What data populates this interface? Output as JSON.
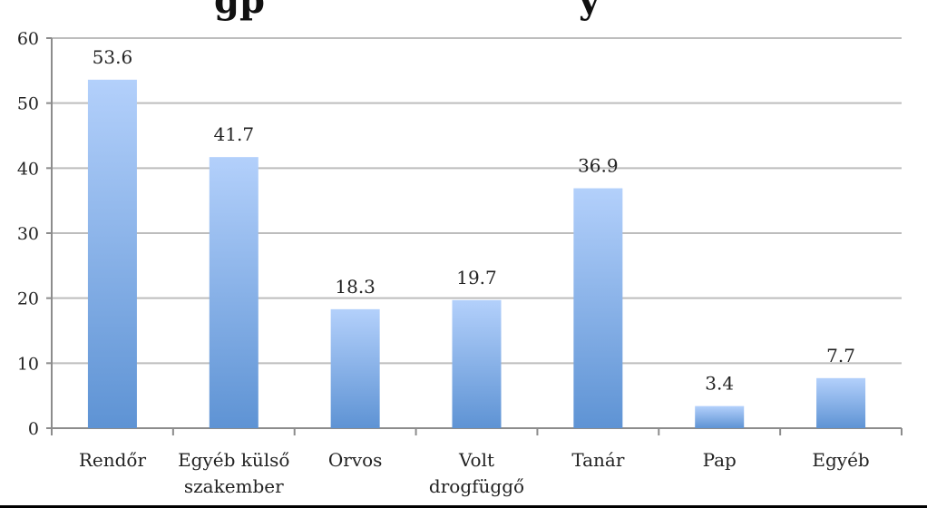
{
  "chart_data": {
    "type": "bar",
    "title_partial_visible": "gp                y",
    "categories": [
      [
        "Rendőr"
      ],
      [
        "Egyéb külső",
        "szakember"
      ],
      [
        "Orvos"
      ],
      [
        "Volt",
        "drogfüggő"
      ],
      [
        "Tanár"
      ],
      [
        "Pap"
      ],
      [
        "Egyéb"
      ]
    ],
    "values": [
      53.6,
      41.7,
      18.3,
      19.7,
      36.9,
      3.4,
      7.7
    ],
    "value_labels": [
      "53.6",
      "41.7",
      "18.3",
      "19.7",
      "36.9",
      "3.4",
      "7.7"
    ],
    "ylim": [
      0,
      60
    ],
    "yticks": [
      0,
      10,
      20,
      30,
      40,
      50,
      60
    ],
    "grid": true,
    "legend": "none",
    "colors": {
      "bar_top": "#b3d0fb",
      "bar_bottom": "#5e93d4",
      "grid": "#bdbdbd",
      "axis": "#8c8c8c"
    }
  }
}
